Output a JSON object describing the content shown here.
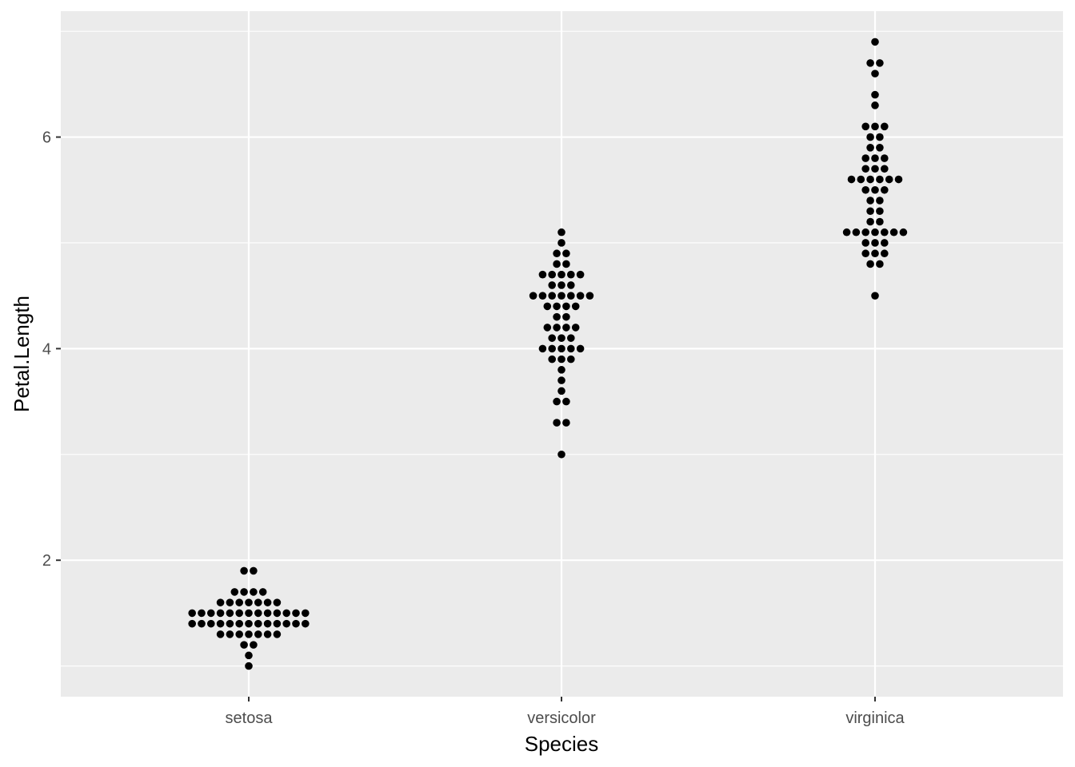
{
  "chart_data": {
    "type": "scatter",
    "subtype": "dotplot",
    "title": "",
    "xlabel": "Species",
    "ylabel": "Petal.Length",
    "categories": [
      "setosa",
      "versicolor",
      "virginica"
    ],
    "ylim": [
      0.71,
      7.19
    ],
    "y_ticks": [
      2,
      4,
      6
    ],
    "y_tick_labels": [
      "2",
      "4",
      "6"
    ],
    "grid": true,
    "legend": "none",
    "colors": {
      "panel": "#ebebeb",
      "grid": "#ffffff",
      "point": "#000000",
      "tick_text": "#4d4d4d"
    },
    "series": [
      {
        "category": "setosa",
        "bins": [
          {
            "y": 1.0,
            "count": 1
          },
          {
            "y": 1.1,
            "count": 1
          },
          {
            "y": 1.2,
            "count": 2
          },
          {
            "y": 1.3,
            "count": 7
          },
          {
            "y": 1.4,
            "count": 13
          },
          {
            "y": 1.5,
            "count": 13
          },
          {
            "y": 1.6,
            "count": 7
          },
          {
            "y": 1.7,
            "count": 4
          },
          {
            "y": 1.9,
            "count": 2
          }
        ]
      },
      {
        "category": "versicolor",
        "bins": [
          {
            "y": 3.0,
            "count": 1
          },
          {
            "y": 3.3,
            "count": 2
          },
          {
            "y": 3.5,
            "count": 2
          },
          {
            "y": 3.6,
            "count": 1
          },
          {
            "y": 3.7,
            "count": 1
          },
          {
            "y": 3.8,
            "count": 1
          },
          {
            "y": 3.9,
            "count": 3
          },
          {
            "y": 4.0,
            "count": 5
          },
          {
            "y": 4.1,
            "count": 3
          },
          {
            "y": 4.2,
            "count": 4
          },
          {
            "y": 4.3,
            "count": 2
          },
          {
            "y": 4.4,
            "count": 4
          },
          {
            "y": 4.5,
            "count": 7
          },
          {
            "y": 4.6,
            "count": 3
          },
          {
            "y": 4.7,
            "count": 5
          },
          {
            "y": 4.8,
            "count": 2
          },
          {
            "y": 4.9,
            "count": 2
          },
          {
            "y": 5.0,
            "count": 1
          },
          {
            "y": 5.1,
            "count": 1
          }
        ]
      },
      {
        "category": "virginica",
        "bins": [
          {
            "y": 4.5,
            "count": 1
          },
          {
            "y": 4.8,
            "count": 2
          },
          {
            "y": 4.9,
            "count": 3
          },
          {
            "y": 5.0,
            "count": 3
          },
          {
            "y": 5.1,
            "count": 7
          },
          {
            "y": 5.2,
            "count": 2
          },
          {
            "y": 5.3,
            "count": 2
          },
          {
            "y": 5.4,
            "count": 2
          },
          {
            "y": 5.5,
            "count": 3
          },
          {
            "y": 5.6,
            "count": 6
          },
          {
            "y": 5.7,
            "count": 3
          },
          {
            "y": 5.8,
            "count": 3
          },
          {
            "y": 5.9,
            "count": 2
          },
          {
            "y": 6.0,
            "count": 2
          },
          {
            "y": 6.1,
            "count": 3
          },
          {
            "y": 6.3,
            "count": 1
          },
          {
            "y": 6.4,
            "count": 1
          },
          {
            "y": 6.6,
            "count": 1
          },
          {
            "y": 6.7,
            "count": 2
          },
          {
            "y": 6.9,
            "count": 1
          }
        ]
      }
    ]
  }
}
